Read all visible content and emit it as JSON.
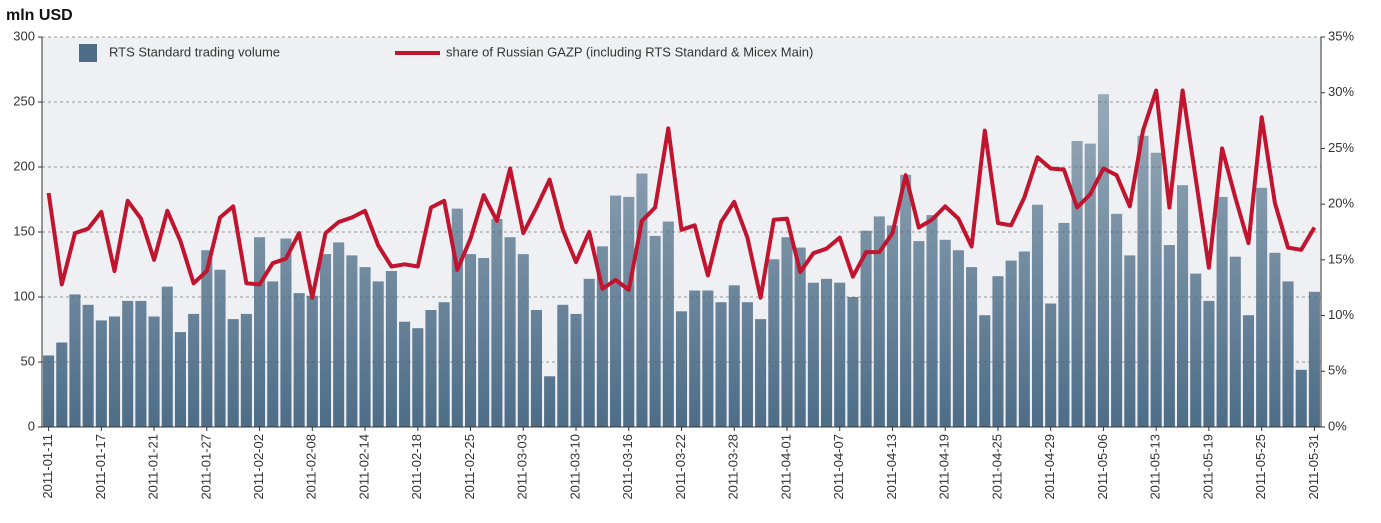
{
  "chart_data": {
    "type": "bar-line",
    "title": "mln USD",
    "categories": [
      "2011-01-11",
      null,
      null,
      null,
      "2011-01-17",
      null,
      null,
      null,
      "2011-01-21",
      null,
      null,
      null,
      "2011-01-27",
      null,
      null,
      null,
      "2011-02-02",
      null,
      null,
      null,
      "2011-02-08",
      null,
      null,
      null,
      "2011-02-14",
      null,
      null,
      null,
      "2011-02-18",
      null,
      null,
      null,
      "2011-02-25",
      null,
      null,
      null,
      "2011-03-03",
      null,
      null,
      null,
      "2011-03-10",
      null,
      null,
      null,
      "2011-03-16",
      null,
      null,
      null,
      "2011-03-22",
      null,
      null,
      null,
      "2011-03-28",
      null,
      null,
      null,
      "2011-04-01",
      null,
      null,
      null,
      "2011-04-07",
      null,
      null,
      null,
      "2011-04-13",
      null,
      null,
      null,
      "2011-04-19",
      null,
      null,
      null,
      "2011-04-25",
      null,
      null,
      null,
      "2011-04-29",
      null,
      null,
      null,
      "2011-05-06",
      null,
      null,
      null,
      "2011-05-13",
      null,
      null,
      null,
      "2011-05-19",
      null,
      null,
      null,
      "2011-05-25",
      null,
      null,
      null,
      "2011-05-31"
    ],
    "series": [
      {
        "name": "RTS Standard trading volume",
        "type": "bar",
        "color": "#4d6d87",
        "values": [
          55,
          65,
          102,
          94,
          82,
          85,
          97,
          97,
          85,
          108,
          73,
          87,
          136,
          121,
          83,
          87,
          146,
          112,
          145,
          103,
          101,
          133,
          142,
          132,
          123,
          112,
          120,
          81,
          76,
          90,
          96,
          168,
          133,
          130,
          160,
          146,
          133,
          90,
          39,
          94,
          87,
          114,
          139,
          178,
          177,
          195,
          147,
          158,
          89,
          105,
          105,
          96,
          109,
          96,
          83,
          129,
          146,
          138,
          111,
          114,
          111,
          100,
          151,
          162,
          155,
          194,
          143,
          163,
          144,
          136,
          123,
          86,
          116,
          128,
          135,
          171,
          95,
          157,
          220,
          218,
          256,
          164,
          132,
          224,
          211,
          140,
          186,
          118,
          97,
          177,
          131,
          86,
          184,
          134,
          112,
          44,
          104
        ]
      },
      {
        "name": "share of Russian GAZP (including RTS Standard & Micex Main)",
        "type": "line",
        "axis": "y2",
        "color": "#c0142f",
        "values": [
          21.0,
          12.8,
          17.4,
          17.8,
          19.3,
          14.0,
          20.3,
          18.7,
          15.0,
          19.4,
          16.7,
          12.9,
          14.0,
          18.8,
          19.8,
          12.9,
          12.8,
          14.7,
          15.1,
          17.4,
          11.6,
          17.4,
          18.4,
          18.8,
          19.4,
          16.3,
          14.4,
          14.6,
          14.4,
          19.7,
          20.3,
          14.1,
          16.9,
          20.8,
          18.5,
          23.2,
          17.4,
          19.7,
          22.2,
          17.7,
          14.8,
          17.5,
          12.4,
          13.2,
          12.3,
          18.5,
          19.7,
          26.8,
          17.7,
          18.1,
          13.6,
          18.4,
          20.2,
          17.0,
          11.6,
          18.6,
          18.7,
          13.9,
          15.6,
          16.0,
          17.0,
          13.5,
          15.7,
          15.7,
          17.4,
          22.6,
          17.9,
          18.6,
          19.8,
          18.7,
          16.2,
          26.6,
          18.3,
          18.1,
          20.6,
          24.2,
          23.2,
          23.1,
          19.7,
          20.9,
          23.2,
          22.6,
          19.8,
          26.6,
          30.2,
          19.7,
          30.2,
          22.3,
          14.3,
          25.0,
          20.6,
          16.5,
          27.8,
          20.1,
          16.1,
          15.9,
          17.9
        ]
      }
    ],
    "ylim": [
      0,
      300
    ],
    "yticks": [
      0,
      50,
      100,
      150,
      200,
      250,
      300
    ],
    "y2lim": [
      0,
      35
    ],
    "y2ticks": [
      {
        "value": 0,
        "label": "0%"
      },
      {
        "value": 5,
        "label": "5%"
      },
      {
        "value": 10,
        "label": "10%"
      },
      {
        "value": 15,
        "label": "15%"
      },
      {
        "value": 20,
        "label": "20%"
      },
      {
        "value": 25,
        "label": "25%"
      },
      {
        "value": 30,
        "label": "30%"
      },
      {
        "value": 35,
        "label": "35%"
      }
    ],
    "grid": true,
    "legend": "top"
  }
}
